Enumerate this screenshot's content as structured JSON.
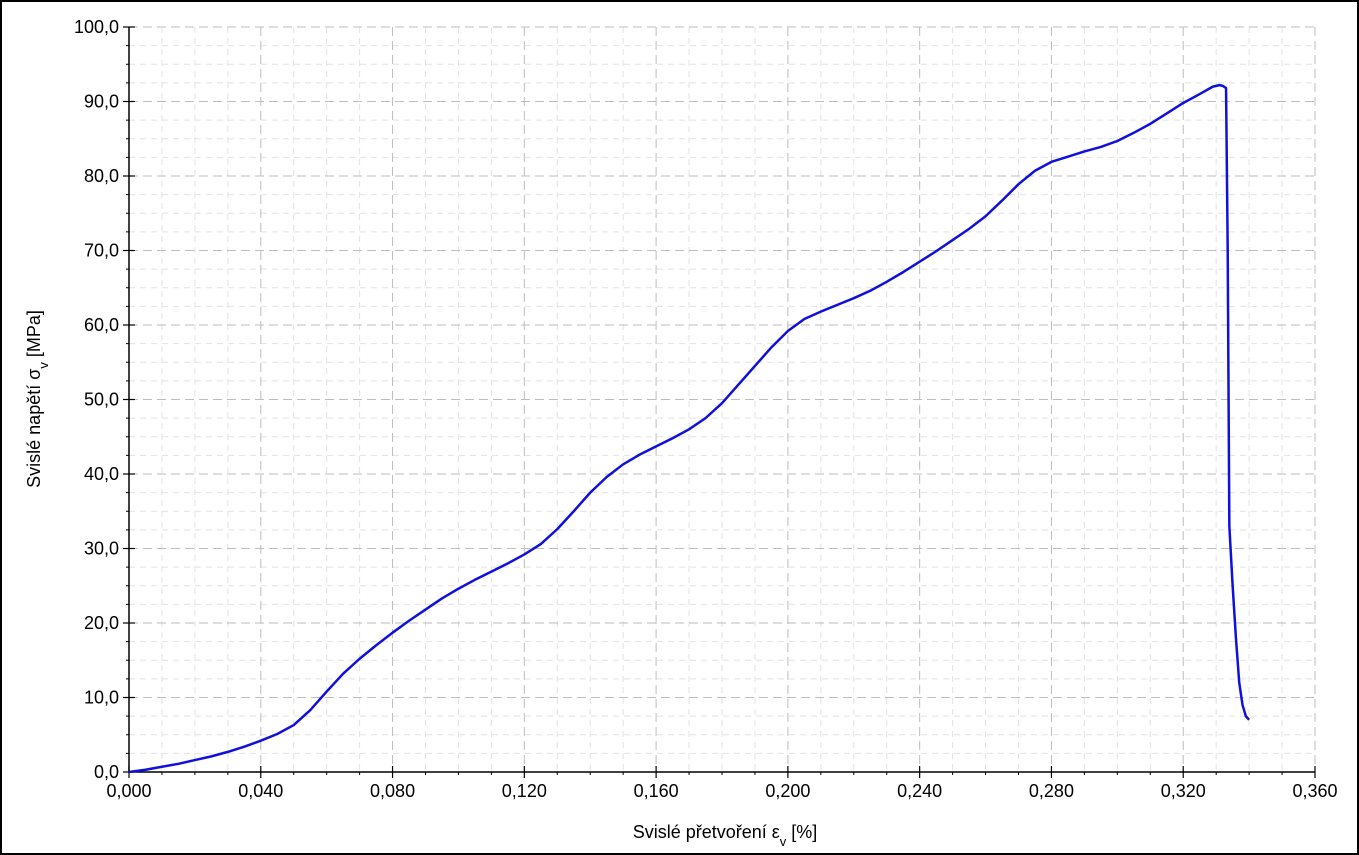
{
  "chart_data": {
    "type": "line",
    "title": "",
    "xlabel_main": "Svislé přetvoření ε",
    "xlabel_sub": "v",
    "xlabel_unit": " [%]",
    "ylabel_main": "Svislé napětí σ",
    "ylabel_sub": "v",
    "ylabel_unit": " [MPa]",
    "xlim": [
      0,
      0.36
    ],
    "ylim": [
      0,
      100
    ],
    "x_ticks": [
      "0,000",
      "0,040",
      "0,080",
      "0,120",
      "0,160",
      "0,200",
      "0,240",
      "0,280",
      "0,320",
      "0,360"
    ],
    "y_ticks": [
      "0,0",
      "10,0",
      "20,0",
      "30,0",
      "40,0",
      "50,0",
      "60,0",
      "70,0",
      "80,0",
      "90,0",
      "100,0"
    ],
    "grid": true,
    "legend": "none",
    "series_color": "#1010dd",
    "series": [
      {
        "x": [
          0,
          0.005,
          0.01,
          0.015,
          0.02,
          0.025,
          0.03,
          0.035,
          0.04,
          0.045,
          0.05,
          0.055,
          0.06,
          0.065,
          0.07,
          0.075,
          0.08,
          0.085,
          0.09,
          0.095,
          0.1,
          0.105,
          0.11,
          0.115,
          0.12,
          0.125,
          0.13,
          0.135,
          0.14,
          0.145,
          0.15,
          0.155,
          0.16,
          0.165,
          0.17,
          0.175,
          0.18,
          0.185,
          0.19,
          0.195,
          0.2,
          0.205,
          0.21,
          0.215,
          0.22,
          0.225,
          0.23,
          0.235,
          0.24,
          0.245,
          0.25,
          0.255,
          0.26,
          0.265,
          0.27,
          0.275,
          0.28,
          0.285,
          0.29,
          0.295,
          0.3,
          0.305,
          0.31,
          0.315,
          0.32,
          0.325,
          0.329,
          0.331,
          0.332,
          0.333,
          0.3335,
          0.334,
          0.335,
          0.336,
          0.337,
          0.338,
          0.339,
          0.34
        ],
        "y": [
          0,
          0.3,
          0.7,
          1.1,
          1.6,
          2.1,
          2.7,
          3.4,
          4.2,
          5.1,
          6.3,
          8.3,
          10.8,
          13.2,
          15.2,
          17.0,
          18.7,
          20.3,
          21.8,
          23.3,
          24.6,
          25.8,
          26.9,
          28.0,
          29.2,
          30.6,
          32.6,
          35.0,
          37.5,
          39.6,
          41.3,
          42.6,
          43.7,
          44.8,
          46.0,
          47.5,
          49.5,
          52.0,
          54.5,
          57.0,
          59.2,
          60.8,
          61.8,
          62.7,
          63.6,
          64.6,
          65.8,
          67.1,
          68.5,
          69.9,
          71.4,
          72.9,
          74.6,
          76.7,
          78.9,
          80.7,
          81.9,
          82.6,
          83.3,
          83.9,
          84.7,
          85.8,
          87.0,
          88.4,
          89.8,
          91.0,
          92.0,
          92.2,
          92.1,
          91.8,
          70.0,
          33.0,
          25.0,
          18.0,
          12.0,
          9.0,
          7.5,
          7.0
        ]
      }
    ]
  }
}
